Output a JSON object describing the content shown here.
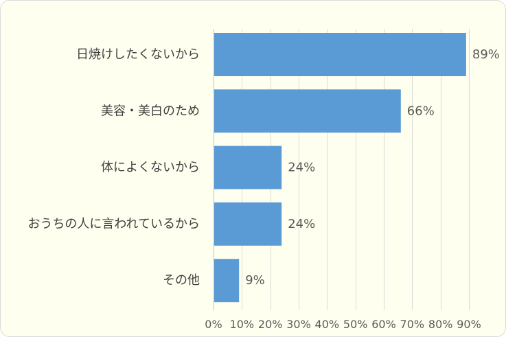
{
  "chart_data": {
    "type": "bar",
    "orientation": "horizontal",
    "categories": [
      "日焼けしたくないから",
      "美容・美白のため",
      "体によくないから",
      "おうちの人に言われているから",
      "その他"
    ],
    "values": [
      89,
      66,
      24,
      24,
      9
    ],
    "value_labels": [
      "89%",
      "66%",
      "24%",
      "24%",
      "9%"
    ],
    "xlim": [
      0,
      90
    ],
    "x_ticks": [
      0,
      10,
      20,
      30,
      40,
      50,
      60,
      70,
      80,
      90
    ],
    "x_tick_labels": [
      "0%",
      "10%",
      "20%",
      "30%",
      "40%",
      "50%",
      "60%",
      "70%",
      "80%",
      "90%"
    ],
    "grid": true,
    "legend": "none"
  },
  "colors": {
    "bar": "#5B9BD5",
    "background": "#FFFFF0",
    "border": "#D9D9D9",
    "gridline": "#D9D9D9",
    "axis_line": "#BFBFBF"
  }
}
